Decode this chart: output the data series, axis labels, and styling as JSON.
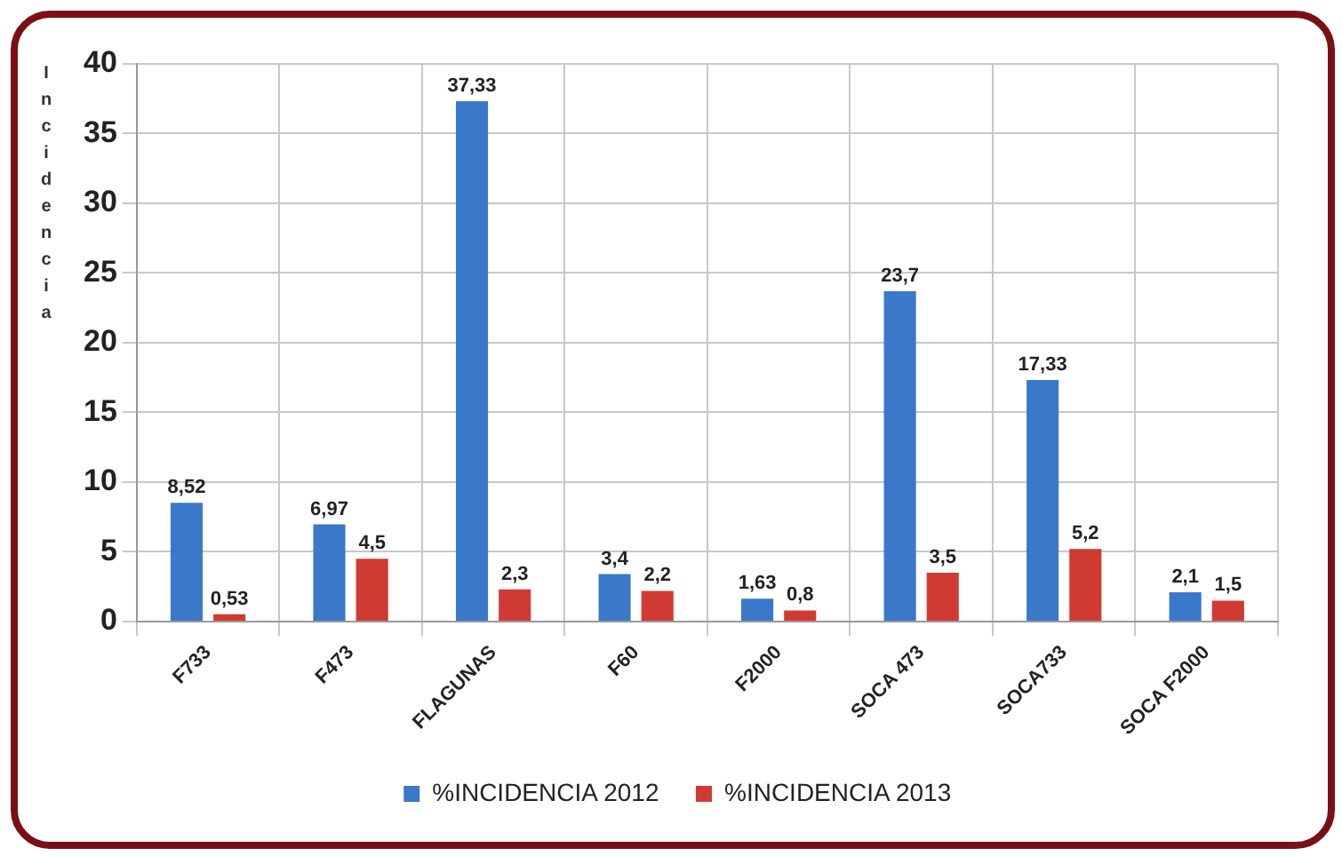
{
  "chart_data": {
    "type": "bar",
    "ylabel": "Incidencia",
    "categories": [
      "F733",
      "F473",
      "FLAGUNAS",
      "F60",
      "F2000",
      "SOCA 473",
      "SOCA733",
      "SOCA F2000"
    ],
    "series": [
      {
        "name": "%INCIDENCIA 2012",
        "color": "#3a78c9",
        "values": [
          8.52,
          6.97,
          37.33,
          3.4,
          1.63,
          23.7,
          17.33,
          2.1
        ],
        "value_labels": [
          "8,52",
          "6,97",
          "37,33",
          "3,4",
          "1,63",
          "23,7",
          "17,33",
          "2,1"
        ]
      },
      {
        "name": "%INCIDENCIA 2013",
        "color": "#d13a32",
        "values": [
          0.53,
          4.5,
          2.3,
          2.2,
          0.8,
          3.5,
          5.2,
          1.5
        ],
        "value_labels": [
          "0,53",
          "4,5",
          "2,3",
          "2,2",
          "0,8",
          "3,5",
          "5,2",
          "1,5"
        ]
      }
    ],
    "ylim": [
      0,
      40
    ],
    "yticks": [
      0,
      5,
      10,
      15,
      20,
      25,
      30,
      35,
      40
    ],
    "grid": true,
    "legend": "bottom"
  }
}
